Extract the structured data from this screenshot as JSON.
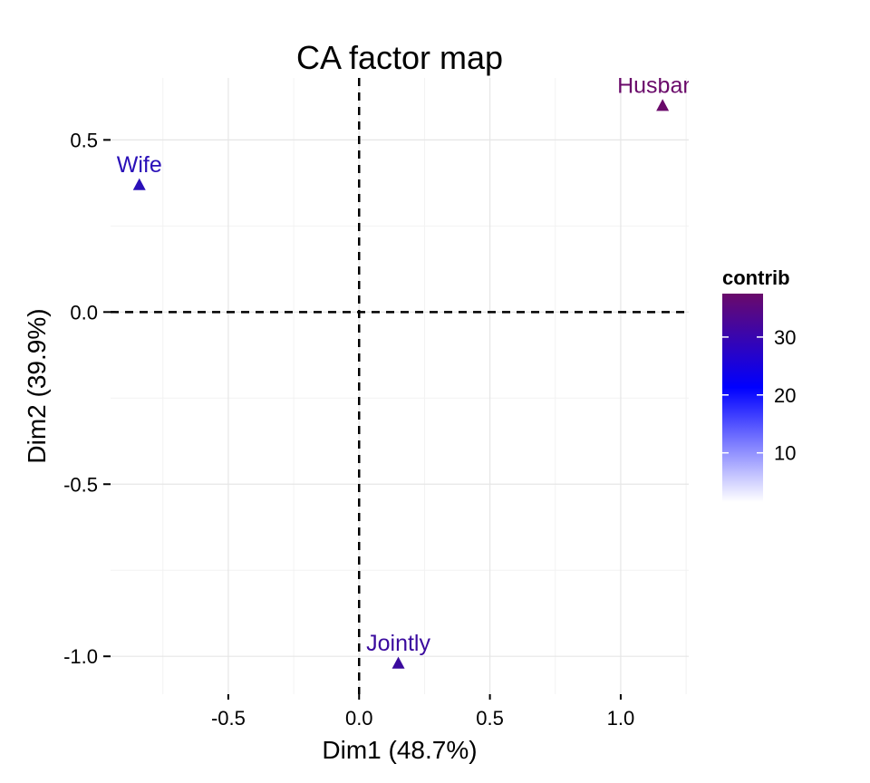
{
  "chart_data": {
    "type": "scatter",
    "title": "CA factor map",
    "xlabel": "Dim1 (48.7%)",
    "ylabel": "Dim2 (39.9%)",
    "xlim": [
      -0.95,
      1.26
    ],
    "ylim": [
      -1.11,
      0.68
    ],
    "x_ticks": [
      -0.5,
      0.0,
      0.5,
      1.0
    ],
    "x_tick_labels": [
      "-0.5",
      "0.0",
      "0.5",
      "1.0"
    ],
    "y_ticks": [
      0.5,
      0.0,
      -0.5,
      -1.0
    ],
    "y_tick_labels": [
      "0.5",
      "0.0",
      "-0.5",
      "-1.0"
    ],
    "grid": true,
    "reference_lines": {
      "x": 0,
      "y": 0,
      "style": "dashed"
    },
    "marker": "triangle",
    "points": [
      {
        "label": "Husband",
        "x": 1.16,
        "y": 0.6,
        "contrib": 37.0,
        "color": "#6a0a6a"
      },
      {
        "label": "Wife",
        "x": -0.84,
        "y": 0.37,
        "contrib": 26.5,
        "color": "#2a10b8"
      },
      {
        "label": "Jointly",
        "x": 0.15,
        "y": -1.02,
        "contrib": 35.5,
        "color": "#3a0a9e"
      }
    ],
    "legend": {
      "title": "contrib",
      "placement": "right",
      "min": 1.5,
      "max": 37.5,
      "ticks": [
        10,
        20,
        30
      ],
      "tick_labels": [
        "10",
        "20",
        "30"
      ],
      "gradient": [
        "#ffffff",
        "#0000ff",
        "#6a0a6a"
      ]
    }
  }
}
